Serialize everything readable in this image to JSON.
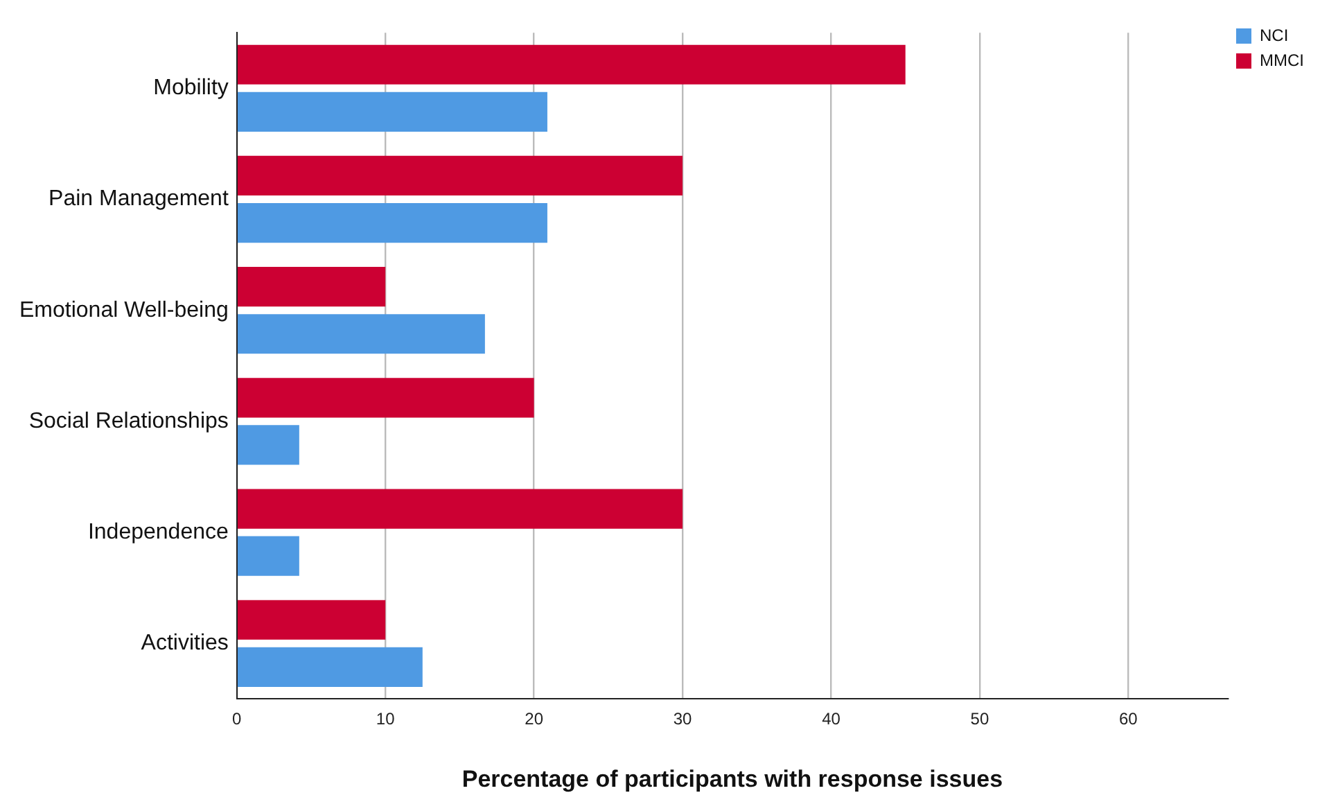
{
  "chart_data": {
    "type": "bar",
    "orientation": "horizontal",
    "xlabel": "Percentage of participants with response issues",
    "categories": [
      "Mobility",
      "Pain Management",
      "Emotional Well-being",
      "Social Relationships",
      "Independence",
      "Activities"
    ],
    "series": [
      {
        "name": "MMCI",
        "color": "#cc0033",
        "values": [
          45,
          30,
          10,
          20,
          30,
          10
        ]
      },
      {
        "name": "NCI",
        "color": "#4f9ae3",
        "values": [
          20.9,
          20.9,
          16.7,
          4.2,
          4.2,
          12.5
        ]
      }
    ],
    "xlim": [
      0,
      66.7
    ],
    "xticks": [
      0,
      10,
      20,
      30,
      40,
      50,
      60
    ],
    "grid": "x",
    "legend": "top right"
  }
}
